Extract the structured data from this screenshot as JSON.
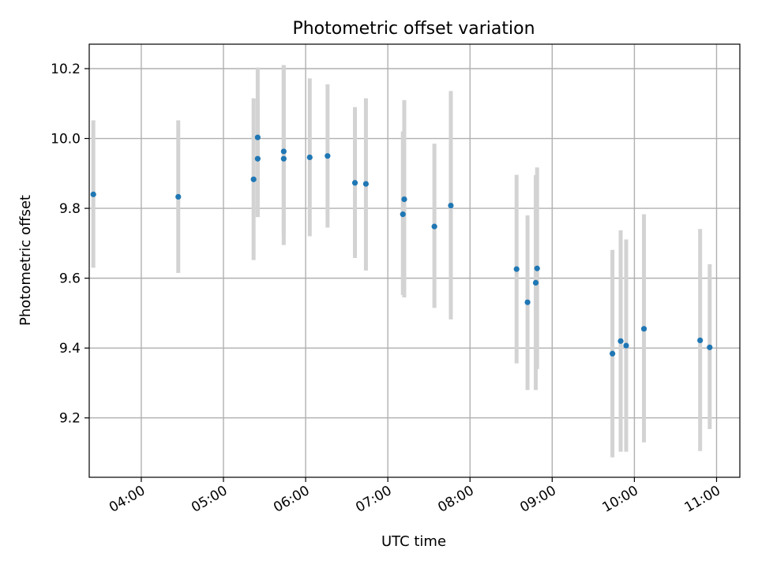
{
  "chart_data": {
    "type": "scatter",
    "title": "Photometric offset variation",
    "xlabel": "UTC time",
    "ylabel": "Photometric offset",
    "xlim": [
      "03:22",
      "11:17"
    ],
    "ylim": [
      9.03,
      10.27
    ],
    "xticks": [
      "04:00",
      "05:00",
      "06:00",
      "07:00",
      "08:00",
      "09:00",
      "10:00",
      "11:00"
    ],
    "yticks": [
      "9.2",
      "9.4",
      "9.6",
      "9.8",
      "10.0",
      "10.2"
    ],
    "grid": true,
    "legend": "none",
    "colors": {
      "points": "#1f77b4",
      "errorbars": "#d3d3d3",
      "grid": "#b0b0b0"
    },
    "points": [
      {
        "x": "03:25",
        "y": 9.84,
        "ylow": 9.63,
        "yhigh": 10.052
      },
      {
        "x": "04:27",
        "y": 9.833,
        "ylow": 9.615,
        "yhigh": 10.052
      },
      {
        "x": "05:22",
        "y": 9.883,
        "ylow": 9.652,
        "yhigh": 10.115
      },
      {
        "x": "05:25",
        "y": 9.942,
        "ylow": 9.775,
        "yhigh": 10.115
      },
      {
        "x": "05:25",
        "y": 10.003,
        "ylow": 9.775,
        "yhigh": 10.203
      },
      {
        "x": "05:44",
        "y": 9.963,
        "ylow": 9.725,
        "yhigh": 10.21
      },
      {
        "x": "05:44",
        "y": 9.942,
        "ylow": 9.695,
        "yhigh": 10.21
      },
      {
        "x": "06:03",
        "y": 9.946,
        "ylow": 9.72,
        "yhigh": 10.172
      },
      {
        "x": "06:16",
        "y": 9.95,
        "ylow": 9.745,
        "yhigh": 10.155
      },
      {
        "x": "06:36",
        "y": 9.873,
        "ylow": 9.658,
        "yhigh": 10.09
      },
      {
        "x": "06:44",
        "y": 9.87,
        "ylow": 9.622,
        "yhigh": 10.115
      },
      {
        "x": "07:11",
        "y": 9.783,
        "ylow": 9.552,
        "yhigh": 10.02
      },
      {
        "x": "07:12",
        "y": 9.826,
        "ylow": 9.545,
        "yhigh": 10.11
      },
      {
        "x": "07:34",
        "y": 9.748,
        "ylow": 9.515,
        "yhigh": 9.985
      },
      {
        "x": "07:46",
        "y": 9.808,
        "ylow": 9.482,
        "yhigh": 10.136
      },
      {
        "x": "08:34",
        "y": 9.626,
        "ylow": 9.356,
        "yhigh": 9.896
      },
      {
        "x": "08:42",
        "y": 9.531,
        "ylow": 9.28,
        "yhigh": 9.78
      },
      {
        "x": "08:48",
        "y": 9.587,
        "ylow": 9.28,
        "yhigh": 9.895
      },
      {
        "x": "08:49",
        "y": 9.628,
        "ylow": 9.34,
        "yhigh": 9.917
      },
      {
        "x": "09:44",
        "y": 9.384,
        "ylow": 9.087,
        "yhigh": 9.681
      },
      {
        "x": "09:50",
        "y": 9.42,
        "ylow": 9.103,
        "yhigh": 9.737
      },
      {
        "x": "09:54",
        "y": 9.407,
        "ylow": 9.103,
        "yhigh": 9.711
      },
      {
        "x": "10:07",
        "y": 9.455,
        "ylow": 9.13,
        "yhigh": 9.783
      },
      {
        "x": "10:48",
        "y": 9.422,
        "ylow": 9.105,
        "yhigh": 9.741
      },
      {
        "x": "10:55",
        "y": 9.402,
        "ylow": 9.168,
        "yhigh": 9.64
      }
    ]
  }
}
